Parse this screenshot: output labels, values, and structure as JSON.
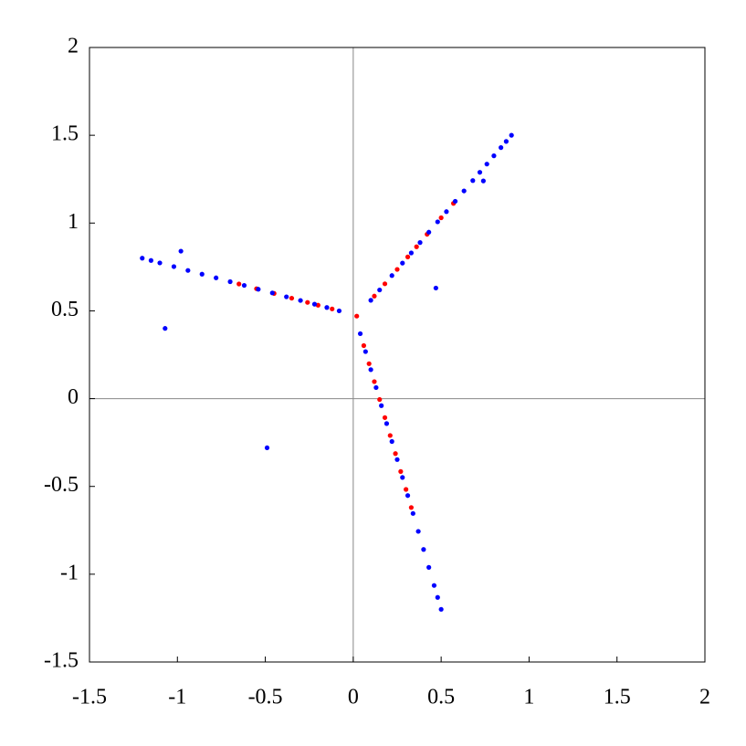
{
  "chart_data": {
    "type": "scatter",
    "xlim": [
      -1.5,
      2
    ],
    "ylim": [
      -1.5,
      2
    ],
    "xticks": [
      -1.5,
      -1,
      -0.5,
      0,
      0.5,
      1,
      1.5,
      2
    ],
    "yticks": [
      -1.5,
      -1,
      -0.5,
      0,
      0.5,
      1,
      1.5,
      2
    ],
    "zero_lines": true,
    "series": [
      {
        "color": "#ff0000",
        "x": [
          0.12,
          0.18,
          0.25,
          0.31,
          0.36,
          0.42,
          0.5,
          0.57,
          -0.12,
          -0.2,
          -0.26,
          -0.35,
          -0.45,
          -0.55,
          -0.65,
          0.06,
          0.09,
          0.12,
          0.15,
          0.18,
          0.21,
          0.24,
          0.27,
          0.3,
          0.33,
          0.02
        ],
        "y": [
          0.584,
          0.654,
          0.736,
          0.807,
          0.865,
          0.936,
          1.03,
          1.112,
          0.511,
          0.532,
          0.548,
          0.572,
          0.599,
          0.626,
          0.653,
          0.302,
          0.199,
          0.097,
          -0.005,
          -0.108,
          -0.21,
          -0.313,
          -0.415,
          -0.517,
          -0.62,
          0.47
        ]
      },
      {
        "color": "#0000ff",
        "x": [
          0.1,
          0.15,
          0.22,
          0.28,
          0.33,
          0.38,
          0.43,
          0.48,
          0.53,
          0.58,
          0.63,
          0.68,
          0.72,
          0.76,
          0.8,
          0.84,
          0.87,
          0.9,
          -0.08,
          -0.15,
          -0.22,
          -0.3,
          -0.38,
          -0.46,
          -0.54,
          -0.62,
          -0.7,
          -0.78,
          -0.86,
          -0.94,
          -1.02,
          -1.1,
          -1.15,
          -1.2,
          0.04,
          0.07,
          0.1,
          0.13,
          0.16,
          0.19,
          0.22,
          0.25,
          0.28,
          0.31,
          0.34,
          0.37,
          0.4,
          0.43,
          0.46,
          0.48,
          0.5,
          -0.98,
          -1.07,
          -0.49,
          0.47,
          0.74
        ],
        "y": [
          0.56,
          0.619,
          0.701,
          0.772,
          0.83,
          0.889,
          0.948,
          1.007,
          1.065,
          1.124,
          1.183,
          1.242,
          1.289,
          1.336,
          1.383,
          1.43,
          1.465,
          1.5,
          0.5,
          0.519,
          0.538,
          0.559,
          0.58,
          0.602,
          0.623,
          0.645,
          0.666,
          0.688,
          0.709,
          0.73,
          0.752,
          0.773,
          0.787,
          0.8,
          0.37,
          0.268,
          0.165,
          0.063,
          -0.04,
          -0.142,
          -0.244,
          -0.347,
          -0.449,
          -0.552,
          -0.654,
          -0.756,
          -0.859,
          -0.961,
          -1.064,
          -1.132,
          -1.2,
          0.84,
          0.4,
          -0.28,
          0.63,
          1.24
        ]
      }
    ]
  }
}
